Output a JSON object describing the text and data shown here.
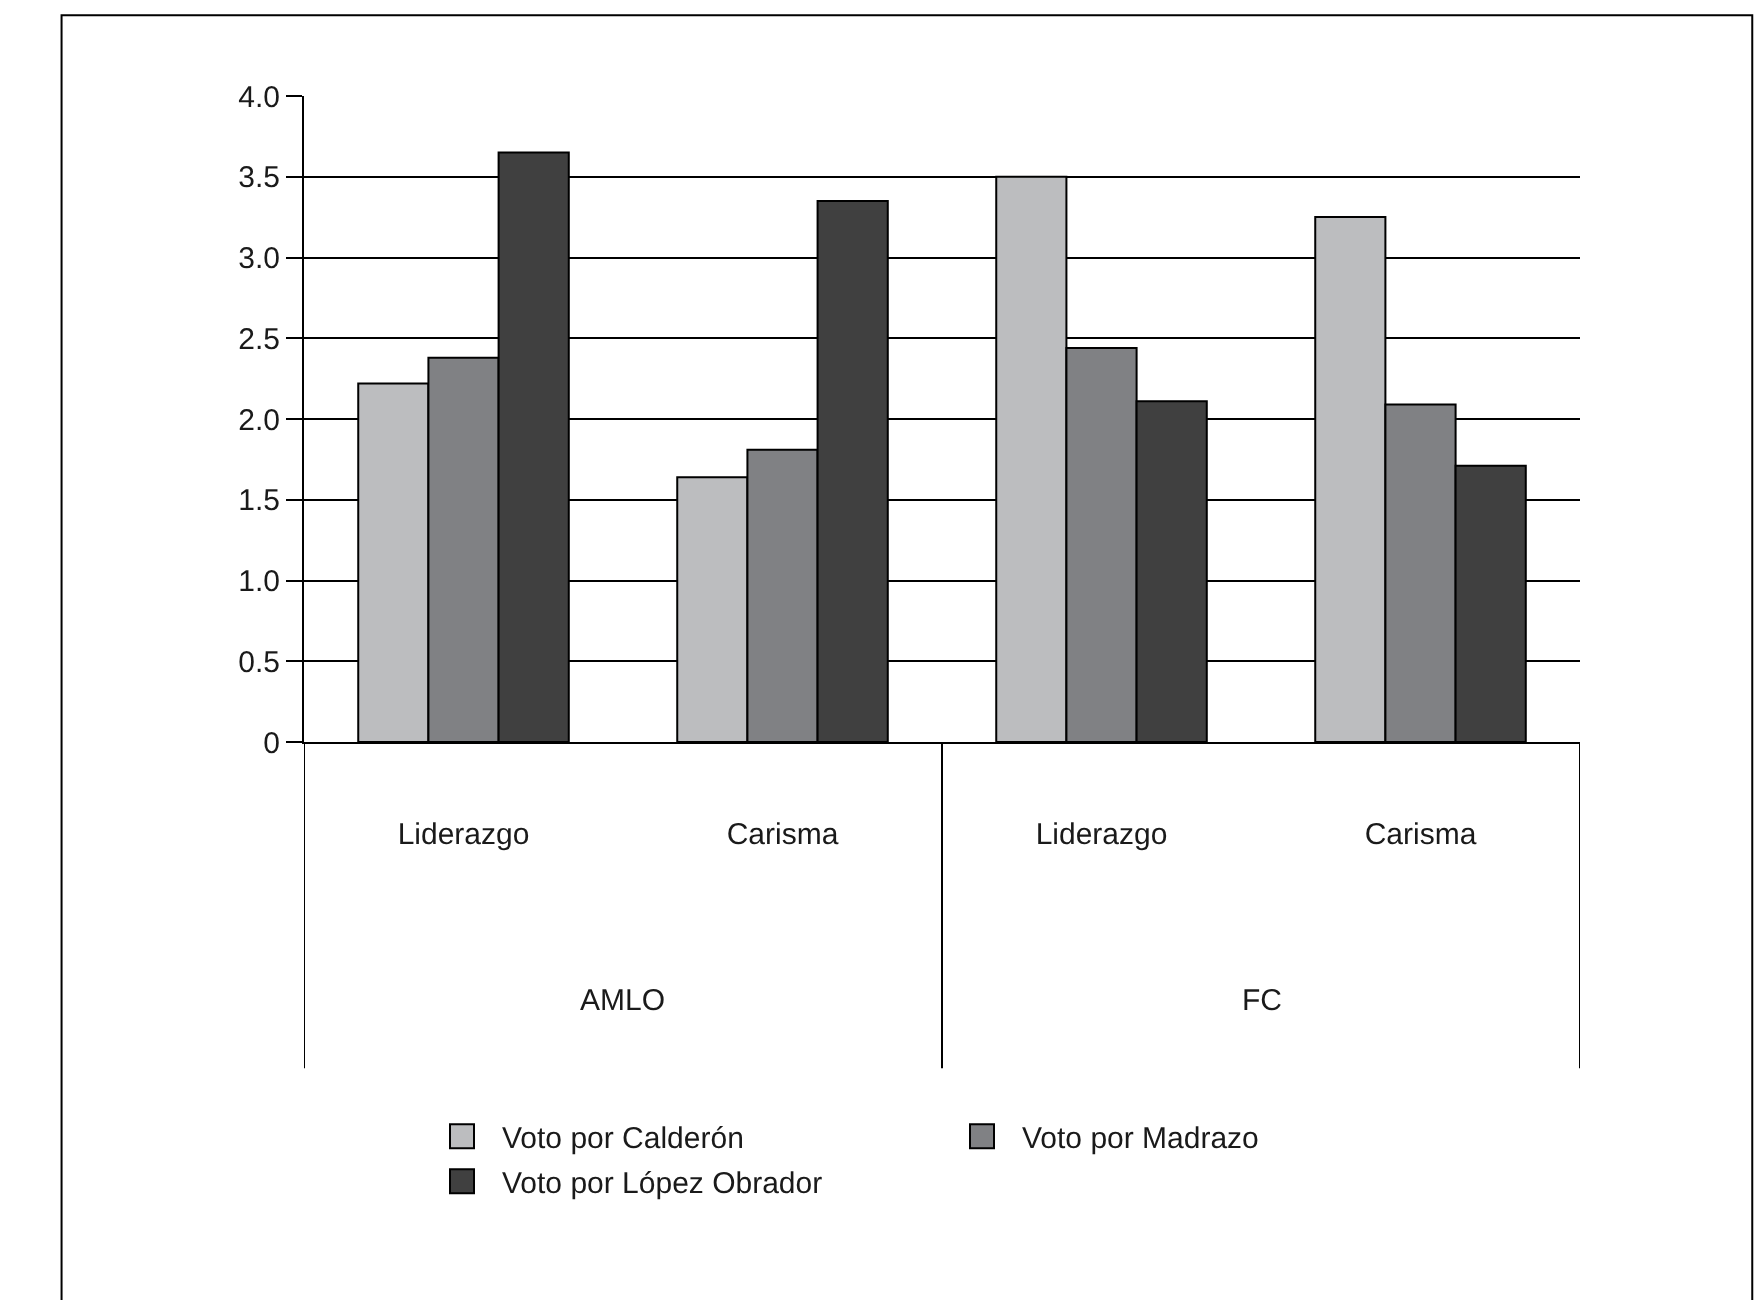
{
  "chart_data": {
    "type": "bar",
    "categories": [
      "Liderazgo",
      "Carisma",
      "Liderazgo",
      "Carisma"
    ],
    "series": [
      {
        "name": "Voto por Calderón",
        "color": "#bcbdbf",
        "values": [
          2.22,
          1.64,
          3.5,
          3.25
        ]
      },
      {
        "name": "Voto por Madrazo",
        "color": "#808184",
        "values": [
          2.38,
          1.81,
          2.44,
          2.09
        ]
      },
      {
        "name": "Voto por López Obrador",
        "color": "#404040",
        "values": [
          3.65,
          3.35,
          2.11,
          1.71
        ]
      }
    ],
    "annotations": [
      "AMLO",
      "FC"
    ],
    "ylim": [
      0,
      4.0
    ],
    "yticks": [
      {
        "value": 0,
        "label": "0"
      },
      {
        "value": 0.5,
        "label": "0.5"
      },
      {
        "value": 1.0,
        "label": "1.0"
      },
      {
        "value": 1.5,
        "label": "1.5"
      },
      {
        "value": 2.0,
        "label": "2.0"
      },
      {
        "value": 2.5,
        "label": "2.5"
      },
      {
        "value": 3.0,
        "label": "3.0"
      },
      {
        "value": 3.5,
        "label": "3.5"
      },
      {
        "value": 4.0,
        "label": "4.0"
      }
    ],
    "grid": "y",
    "legend": "bottom"
  }
}
